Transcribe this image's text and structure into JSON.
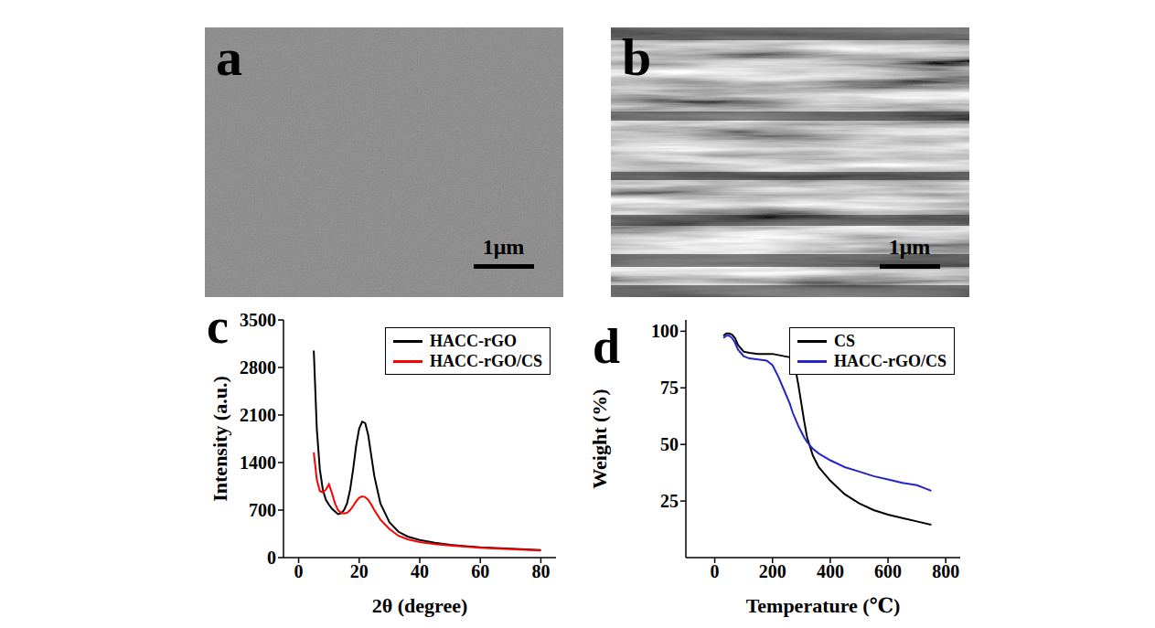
{
  "images": [
    {
      "panel": "a",
      "scale_bar": "1μm"
    },
    {
      "panel": "b",
      "scale_bar": "1μm"
    }
  ],
  "chart_data": [
    {
      "panel": "c",
      "type": "line",
      "xlabel": "2θ (degree)",
      "ylabel": "Intensity (a.u.)",
      "xlim": [
        -5,
        85
      ],
      "xticks": [
        0,
        20,
        40,
        60,
        80
      ],
      "ylim": [
        0,
        3500
      ],
      "yticks": [
        0,
        700,
        1400,
        2100,
        2800,
        3500
      ],
      "legend": "upper right",
      "x": [
        5,
        6,
        7,
        8,
        9,
        10,
        11,
        12,
        13,
        14,
        15,
        16,
        17,
        18,
        19,
        20,
        21,
        22,
        23,
        24,
        25,
        27,
        30,
        33,
        36,
        40,
        45,
        50,
        55,
        60,
        65,
        70,
        75,
        80
      ],
      "series": [
        {
          "name": "HACC-rGO",
          "color": "#000000",
          "values": [
            3050,
            1900,
            1300,
            1000,
            850,
            780,
            720,
            680,
            640,
            650,
            700,
            800,
            1000,
            1300,
            1650,
            1900,
            2000,
            1980,
            1800,
            1500,
            1200,
            800,
            520,
            380,
            310,
            260,
            220,
            190,
            170,
            150,
            140,
            130,
            120,
            110
          ]
        },
        {
          "name": "HACC-rGO/CS",
          "color": "#ff0000",
          "values": [
            1550,
            1150,
            980,
            960,
            1000,
            1080,
            950,
            800,
            700,
            660,
            650,
            660,
            700,
            760,
            830,
            880,
            900,
            890,
            850,
            780,
            700,
            560,
            420,
            320,
            270,
            230,
            200,
            180,
            160,
            145,
            135,
            125,
            115,
            105
          ]
        }
      ]
    },
    {
      "panel": "d",
      "type": "line",
      "xlabel": "Temperature (℃)",
      "ylabel": "Weight (%)",
      "xlim": [
        -100,
        850
      ],
      "xticks": [
        0,
        200,
        400,
        600,
        800
      ],
      "ylim": [
        0,
        105
      ],
      "yticks": [
        25,
        50,
        75,
        100
      ],
      "legend": "upper right",
      "x": [
        30,
        40,
        50,
        60,
        70,
        80,
        100,
        120,
        150,
        180,
        200,
        220,
        240,
        260,
        270,
        280,
        290,
        300,
        310,
        320,
        340,
        360,
        380,
        400,
        450,
        500,
        550,
        600,
        650,
        700,
        750
      ],
      "series": [
        {
          "name": "CS",
          "color": "#000000",
          "values": [
            98,
            99,
            99,
            98.5,
            97,
            94,
            91,
            90.5,
            90,
            90,
            90,
            89.5,
            89,
            88.5,
            87,
            83,
            76,
            68,
            60,
            53,
            45,
            40,
            37,
            34,
            28,
            24,
            21,
            19,
            17.5,
            16,
            14.5
          ]
        },
        {
          "name": "HACC-rGO/CS",
          "color": "#2424c8",
          "values": [
            97,
            98,
            98,
            97,
            95,
            92,
            89,
            88,
            87.5,
            87,
            85,
            80,
            74,
            68,
            64,
            61,
            58,
            55.5,
            53,
            51,
            48,
            46,
            44.5,
            43,
            40,
            38,
            36,
            34.5,
            33,
            32,
            29.5
          ]
        }
      ]
    }
  ]
}
